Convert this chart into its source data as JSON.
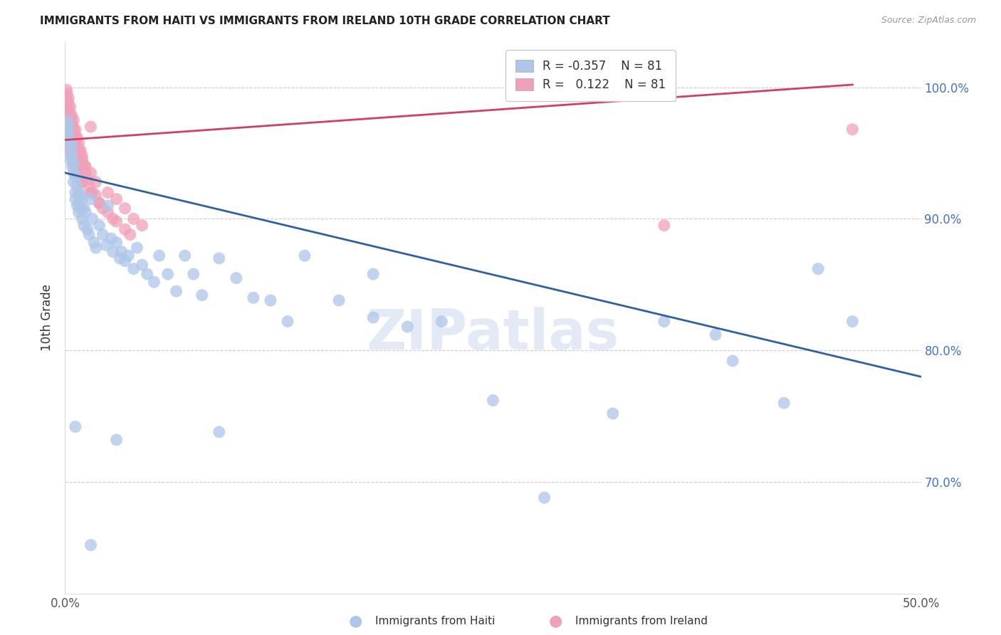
{
  "title": "IMMIGRANTS FROM HAITI VS IMMIGRANTS FROM IRELAND 10TH GRADE CORRELATION CHART",
  "source": "Source: ZipAtlas.com",
  "ylabel": "10th Grade",
  "xlim": [
    0.0,
    0.5
  ],
  "ylim": [
    0.615,
    1.035
  ],
  "xtick_positions": [
    0.0,
    0.1,
    0.2,
    0.3,
    0.4,
    0.5
  ],
  "xtick_labels": [
    "0.0%",
    "",
    "",
    "",
    "",
    "50.0%"
  ],
  "ytick_positions": [
    1.0,
    0.9,
    0.8,
    0.7
  ],
  "ytick_labels": [
    "100.0%",
    "90.0%",
    "80.0%",
    "70.0%"
  ],
  "haiti_color": "#aec6e8",
  "ireland_color": "#f0a0b8",
  "haiti_line_color": "#3060a0",
  "ireland_line_color": "#d04060",
  "legend_haiti_label": "Immigrants from Haiti",
  "legend_ireland_label": "Immigrants from Ireland",
  "R_haiti": "-0.357",
  "R_ireland": "0.122",
  "N": 81,
  "watermark": "ZIPatlas",
  "haiti_x": [
    0.001,
    0.001,
    0.002,
    0.002,
    0.002,
    0.003,
    0.003,
    0.003,
    0.004,
    0.004,
    0.004,
    0.005,
    0.005,
    0.005,
    0.006,
    0.006,
    0.006,
    0.007,
    0.007,
    0.008,
    0.008,
    0.008,
    0.009,
    0.009,
    0.01,
    0.01,
    0.011,
    0.011,
    0.012,
    0.013,
    0.014,
    0.015,
    0.016,
    0.017,
    0.018,
    0.02,
    0.022,
    0.024,
    0.025,
    0.027,
    0.028,
    0.03,
    0.032,
    0.033,
    0.035,
    0.037,
    0.04,
    0.042,
    0.045,
    0.048,
    0.052,
    0.055,
    0.06,
    0.065,
    0.07,
    0.075,
    0.08,
    0.09,
    0.1,
    0.11,
    0.12,
    0.13,
    0.14,
    0.16,
    0.18,
    0.2,
    0.22,
    0.25,
    0.28,
    0.32,
    0.35,
    0.38,
    0.39,
    0.42,
    0.44,
    0.46,
    0.006,
    0.015,
    0.03,
    0.09,
    0.18
  ],
  "haiti_y": [
    0.975,
    0.968,
    0.972,
    0.965,
    0.96,
    0.958,
    0.95,
    0.945,
    0.955,
    0.948,
    0.94,
    0.942,
    0.935,
    0.928,
    0.932,
    0.92,
    0.915,
    0.925,
    0.91,
    0.92,
    0.912,
    0.905,
    0.918,
    0.908,
    0.915,
    0.9,
    0.908,
    0.895,
    0.905,
    0.892,
    0.888,
    0.915,
    0.9,
    0.882,
    0.878,
    0.895,
    0.888,
    0.88,
    0.91,
    0.885,
    0.875,
    0.882,
    0.87,
    0.875,
    0.868,
    0.872,
    0.862,
    0.878,
    0.865,
    0.858,
    0.852,
    0.872,
    0.858,
    0.845,
    0.872,
    0.858,
    0.842,
    0.87,
    0.855,
    0.84,
    0.838,
    0.822,
    0.872,
    0.838,
    0.825,
    0.818,
    0.822,
    0.762,
    0.688,
    0.752,
    0.822,
    0.812,
    0.792,
    0.76,
    0.862,
    0.822,
    0.742,
    0.652,
    0.732,
    0.738,
    0.858
  ],
  "ireland_x": [
    0.001,
    0.001,
    0.001,
    0.001,
    0.002,
    0.002,
    0.002,
    0.002,
    0.003,
    0.003,
    0.003,
    0.003,
    0.003,
    0.004,
    0.004,
    0.004,
    0.004,
    0.005,
    0.005,
    0.005,
    0.006,
    0.006,
    0.006,
    0.007,
    0.007,
    0.007,
    0.008,
    0.008,
    0.008,
    0.009,
    0.009,
    0.01,
    0.01,
    0.011,
    0.012,
    0.013,
    0.014,
    0.015,
    0.016,
    0.018,
    0.02,
    0.022,
    0.025,
    0.028,
    0.03,
    0.035,
    0.038,
    0.002,
    0.003,
    0.004,
    0.005,
    0.006,
    0.007,
    0.008,
    0.01,
    0.012,
    0.015,
    0.018,
    0.025,
    0.03,
    0.035,
    0.04,
    0.045,
    0.002,
    0.003,
    0.004,
    0.005,
    0.007,
    0.01,
    0.015,
    0.02,
    0.002,
    0.003,
    0.003,
    0.004,
    0.005,
    0.006,
    0.008,
    0.01,
    0.35,
    0.46
  ],
  "ireland_y": [
    0.998,
    0.995,
    0.99,
    0.985,
    0.992,
    0.988,
    0.982,
    0.978,
    0.985,
    0.98,
    0.975,
    0.97,
    0.965,
    0.978,
    0.972,
    0.968,
    0.962,
    0.975,
    0.968,
    0.96,
    0.968,
    0.962,
    0.955,
    0.962,
    0.955,
    0.948,
    0.958,
    0.952,
    0.945,
    0.952,
    0.945,
    0.948,
    0.942,
    0.94,
    0.935,
    0.93,
    0.925,
    0.97,
    0.92,
    0.918,
    0.912,
    0.908,
    0.905,
    0.9,
    0.898,
    0.892,
    0.888,
    0.975,
    0.972,
    0.968,
    0.965,
    0.96,
    0.955,
    0.952,
    0.945,
    0.94,
    0.935,
    0.928,
    0.92,
    0.915,
    0.908,
    0.9,
    0.895,
    0.958,
    0.952,
    0.948,
    0.942,
    0.935,
    0.928,
    0.92,
    0.912,
    0.962,
    0.958,
    0.955,
    0.95,
    0.945,
    0.94,
    0.935,
    0.928,
    0.895,
    0.968
  ]
}
